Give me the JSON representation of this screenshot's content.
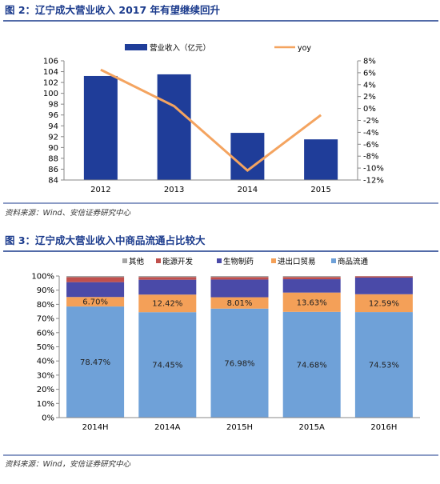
{
  "figures": [
    {
      "title": "图 2：辽宁成大营业收入 2017 年有望继续回升",
      "source": "资料来源：Wind、安信证券研究中心"
    },
    {
      "title": "图 3：辽宁成大营业收入中商品流通占比较大",
      "source": "资料来源：Wind，安信证券研究中心"
    }
  ],
  "chart_data": [
    {
      "type": "bar",
      "categories": [
        "2012",
        "2013",
        "2014",
        "2015"
      ],
      "series": [
        {
          "name": "营业收入（亿元）",
          "type": "bar",
          "axis": "left",
          "color": "#1f3d99",
          "values": [
            103.2,
            103.5,
            92.7,
            91.5
          ]
        },
        {
          "name": "yoy",
          "type": "line",
          "axis": "right",
          "color": "#f4a460",
          "values": [
            6.5,
            0.4,
            -10.4,
            -1.1
          ]
        }
      ],
      "y_left": {
        "ticks": [
          "84",
          "86",
          "88",
          "90",
          "92",
          "94",
          "96",
          "98",
          "100",
          "102",
          "104",
          "106"
        ],
        "range": [
          84,
          106
        ]
      },
      "y_right": {
        "ticks": [
          "8%",
          "6%",
          "4%",
          "2%",
          "0%",
          "-2%",
          "-4%",
          "-6%",
          "-8%",
          "-10%",
          "-12%"
        ],
        "range": [
          -12,
          8
        ]
      },
      "grid": false,
      "legend": "top"
    },
    {
      "type": "bar",
      "stacked": true,
      "percent": true,
      "categories": [
        "2014H",
        "2014A",
        "2015H",
        "2015A",
        "2016H"
      ],
      "series": [
        {
          "name": "商品流通",
          "color": "#6fa1d8",
          "values": [
            78.47,
            74.45,
            76.98,
            74.68,
            74.53
          ],
          "labels": [
            "78.47%",
            "74.45%",
            "76.98%",
            "74.68%",
            "74.53%"
          ]
        },
        {
          "name": "进出口贸易",
          "color": "#f4a058",
          "values": [
            6.7,
            12.42,
            8.01,
            13.63,
            12.59
          ],
          "labels": [
            "6.70%",
            "12.42%",
            "8.01%",
            "13.63%",
            "12.59%"
          ]
        },
        {
          "name": "生物制药",
          "color": "#4a4aa8",
          "values": [
            10.5,
            10.5,
            12.5,
            9.4,
            11.8
          ]
        },
        {
          "name": "能源开发",
          "color": "#c0504d",
          "values": [
            3.5,
            1.9,
            1.8,
            1.6,
            0.9
          ]
        },
        {
          "name": "其他",
          "color": "#a6a6a6",
          "values": [
            0.83,
            0.73,
            0.71,
            0.69,
            0.18
          ]
        }
      ],
      "legend_order": [
        "其他",
        "能源开发",
        "生物制药",
        "进出口贸易",
        "商品流通"
      ],
      "y_ticks": [
        "0%",
        "10%",
        "20%",
        "30%",
        "40%",
        "50%",
        "60%",
        "70%",
        "80%",
        "90%",
        "100%"
      ],
      "ylim": [
        0,
        100
      ],
      "grid": false,
      "legend": "top"
    }
  ]
}
